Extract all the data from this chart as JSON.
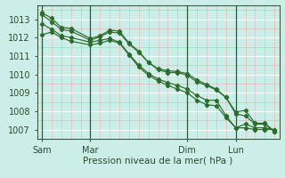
{
  "xlabel": "Pression niveau de la mer( hPa )",
  "bg_color": "#cceee8",
  "grid_major_color": "#ffffff",
  "grid_minor_color": "#e8b8b8",
  "line_color": "#2d6b2d",
  "ylim": [
    1006.5,
    1013.75
  ],
  "yticks": [
    1007,
    1008,
    1009,
    1010,
    1011,
    1012,
    1013
  ],
  "day_labels": [
    "Sam",
    "Mar",
    "Dim",
    "Lun"
  ],
  "day_positions": [
    0,
    30,
    90,
    120
  ],
  "xlim": [
    -3,
    147
  ],
  "lines": [
    [
      0,
      1013.25,
      6,
      1012.85,
      12,
      1012.45,
      18,
      1012.35,
      30,
      1011.85,
      36,
      1012.05,
      42,
      1012.3,
      48,
      1012.25,
      54,
      1011.65,
      60,
      1011.2,
      66,
      1010.65,
      72,
      1010.25,
      78,
      1010.1,
      84,
      1010.1,
      90,
      1009.95,
      96,
      1009.6,
      102,
      1009.4,
      108,
      1009.15,
      114,
      1008.75,
      120,
      1007.95,
      126,
      1008.05,
      132,
      1007.35,
      138,
      1007.35,
      144,
      1006.9
    ],
    [
      0,
      1013.35,
      6,
      1013.05,
      12,
      1012.55,
      18,
      1012.5,
      30,
      1011.95,
      36,
      1012.1,
      42,
      1012.4,
      48,
      1012.35,
      54,
      1011.7,
      60,
      1011.25,
      66,
      1010.65,
      72,
      1010.3,
      78,
      1010.2,
      84,
      1010.15,
      90,
      1010.05,
      96,
      1009.7,
      102,
      1009.45,
      108,
      1009.2,
      114,
      1008.75,
      120,
      1007.85,
      126,
      1007.75,
      132,
      1007.3,
      138,
      1007.3,
      144,
      1006.9
    ],
    [
      0,
      1012.75,
      6,
      1012.45,
      12,
      1012.1,
      18,
      1012.0,
      30,
      1011.75,
      36,
      1011.85,
      42,
      1011.95,
      48,
      1011.75,
      54,
      1011.1,
      60,
      1010.5,
      66,
      1010.05,
      72,
      1009.75,
      78,
      1009.55,
      84,
      1009.4,
      90,
      1009.2,
      96,
      1008.85,
      102,
      1008.6,
      108,
      1008.6,
      114,
      1007.75,
      120,
      1007.1,
      126,
      1007.3,
      132,
      1007.1,
      138,
      1007.1,
      144,
      1007.0
    ],
    [
      0,
      1012.15,
      6,
      1012.3,
      12,
      1012.0,
      18,
      1011.8,
      30,
      1011.6,
      36,
      1011.7,
      42,
      1011.85,
      48,
      1011.7,
      54,
      1011.05,
      60,
      1010.4,
      66,
      1009.95,
      72,
      1009.65,
      78,
      1009.4,
      84,
      1009.2,
      90,
      1009.0,
      96,
      1008.6,
      102,
      1008.35,
      108,
      1008.3,
      114,
      1007.65,
      120,
      1007.1,
      126,
      1007.1,
      132,
      1007.0,
      138,
      1007.0,
      144,
      1007.0
    ]
  ]
}
